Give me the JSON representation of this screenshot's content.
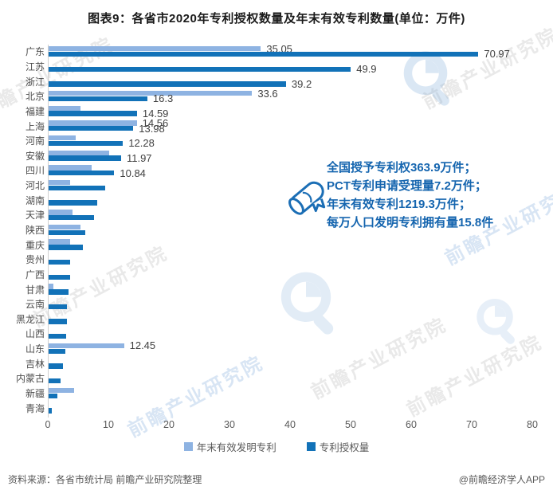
{
  "title": "图表9：各省市2020年专利授权数量及年末有效专利数量(单位：万件)",
  "colors": {
    "light_series": "#8EB3E2",
    "dark_series": "#1272B8",
    "annotation_text": "#1565AF",
    "axis_text": "#595959",
    "value_label_text": "#3F3F3F",
    "watermark_blue": "#7DAADA"
  },
  "chart_data": {
    "type": "bar",
    "orientation": "horizontal",
    "title": "图表9：各省市2020年专利授权数量及年末有效专利数量(单位：万件)",
    "unit": "万件",
    "xlim": [
      0,
      80
    ],
    "x_ticks": [
      0,
      10,
      20,
      30,
      40,
      50,
      60,
      70,
      80
    ],
    "grid": false,
    "legend_position": "bottom",
    "categories": [
      "广东",
      "江苏",
      "浙江",
      "北京",
      "福建",
      "上海",
      "河南",
      "安徽",
      "四川",
      "河北",
      "湖南",
      "天津",
      "陕西",
      "重庆",
      "贵州",
      "广西",
      "甘肃",
      "云南",
      "黑龙江",
      "山西",
      "山东",
      "吉林",
      "内蒙古",
      "新疆",
      "青海"
    ],
    "series": [
      {
        "name": "年末有效发明专利",
        "color": "#8EB3E2",
        "values": [
          35.05,
          null,
          null,
          33.6,
          5.2,
          14.56,
          4.5,
          10.0,
          7.1,
          3.5,
          null,
          3.9,
          5.2,
          3.6,
          null,
          null,
          0.8,
          null,
          null,
          null,
          12.45,
          null,
          null,
          4.2,
          null
        ],
        "labels": [
          "35.05",
          null,
          null,
          "33.6",
          null,
          "14.56",
          null,
          null,
          null,
          null,
          null,
          null,
          null,
          null,
          null,
          null,
          null,
          null,
          null,
          null,
          "12.45",
          null,
          null,
          null,
          null
        ]
      },
      {
        "name": "专利授权量",
        "color": "#1272B8",
        "values": [
          70.97,
          49.9,
          39.2,
          16.3,
          14.59,
          13.98,
          12.28,
          11.97,
          10.84,
          9.3,
          8.0,
          7.5,
          6.1,
          5.6,
          3.5,
          3.5,
          3.3,
          3.0,
          3.0,
          2.9,
          2.7,
          2.4,
          2.0,
          1.4,
          0.5
        ],
        "labels": [
          "70.97",
          "49.9",
          "39.2",
          "16.3",
          "14.59",
          "13.98",
          "12.28",
          "11.97",
          "10.84",
          null,
          null,
          null,
          null,
          null,
          null,
          null,
          null,
          null,
          null,
          null,
          null,
          null,
          null,
          null,
          null
        ]
      }
    ]
  },
  "annotation": {
    "lines": [
      "全国授予专利权363.9万件；",
      "PCT专利申请受理量7.2万件；",
      "年末有效专利1219.3万件；",
      "每万人口发明专利拥有量15.8件"
    ]
  },
  "legend": {
    "items": [
      {
        "label": "年末有效发明专利",
        "color": "#8EB3E2"
      },
      {
        "label": "专利授权量",
        "color": "#1272B8"
      }
    ]
  },
  "footer": {
    "source": "资料来源：各省市统计局 前瞻产业研究院整理",
    "credit": "@前瞻经济学人APP"
  },
  "watermark": {
    "text": "前瞻产业研究院"
  }
}
